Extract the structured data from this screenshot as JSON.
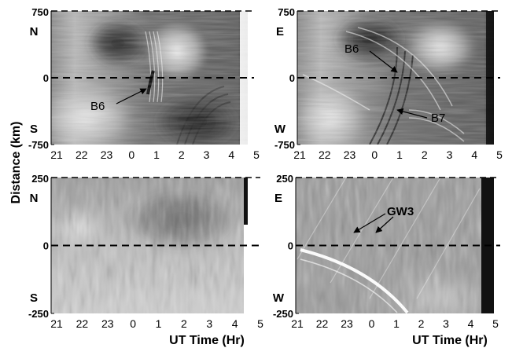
{
  "figure": {
    "ylabel": "Distance (km)",
    "xlabel": "UT Time (Hr)"
  },
  "chart_data": [
    {
      "type": "heatmap",
      "panel": "top-left",
      "x_ticks": [
        "21",
        "22",
        "23",
        "0",
        "1",
        "2",
        "3",
        "4",
        "5"
      ],
      "y_ticks": [
        "750",
        "0",
        "-750"
      ],
      "ylim": [
        -750,
        750
      ],
      "dir_top": "N",
      "dir_bottom": "S",
      "annotations": [
        {
          "label": "B6",
          "x": 0.8,
          "y": -40
        }
      ],
      "colormap": "grayscale"
    },
    {
      "type": "heatmap",
      "panel": "top-right",
      "x_ticks": [
        "21",
        "22",
        "23",
        "0",
        "1",
        "2",
        "3",
        "4",
        "5"
      ],
      "y_ticks": [
        "750",
        "0",
        "-750"
      ],
      "ylim": [
        -750,
        750
      ],
      "dir_top": "E",
      "dir_bottom": "W",
      "annotations": [
        {
          "label": "B6",
          "x": 0.6,
          "y": 60
        },
        {
          "label": "B7",
          "x": 0.8,
          "y": -300
        }
      ],
      "colormap": "grayscale"
    },
    {
      "type": "heatmap",
      "panel": "bottom-left",
      "x_ticks": [
        "21",
        "22",
        "23",
        "0",
        "1",
        "2",
        "3",
        "4",
        "5"
      ],
      "y_ticks": [
        "250",
        "0",
        "-250"
      ],
      "ylim": [
        -250,
        250
      ],
      "dir_top": "N",
      "dir_bottom": "S",
      "annotations": [],
      "colormap": "grayscale"
    },
    {
      "type": "heatmap",
      "panel": "bottom-right",
      "x_ticks": [
        "21",
        "22",
        "23",
        "0",
        "1",
        "2",
        "3",
        "4",
        "5"
      ],
      "y_ticks": [
        "250",
        "0",
        "-250"
      ],
      "ylim": [
        -250,
        250
      ],
      "dir_top": "E",
      "dir_bottom": "W",
      "annotations": [
        {
          "label": "GW3",
          "targets": [
            [
              23.5,
              15
            ],
            [
              0.2,
              15
            ]
          ]
        }
      ],
      "colormap": "grayscale"
    }
  ]
}
